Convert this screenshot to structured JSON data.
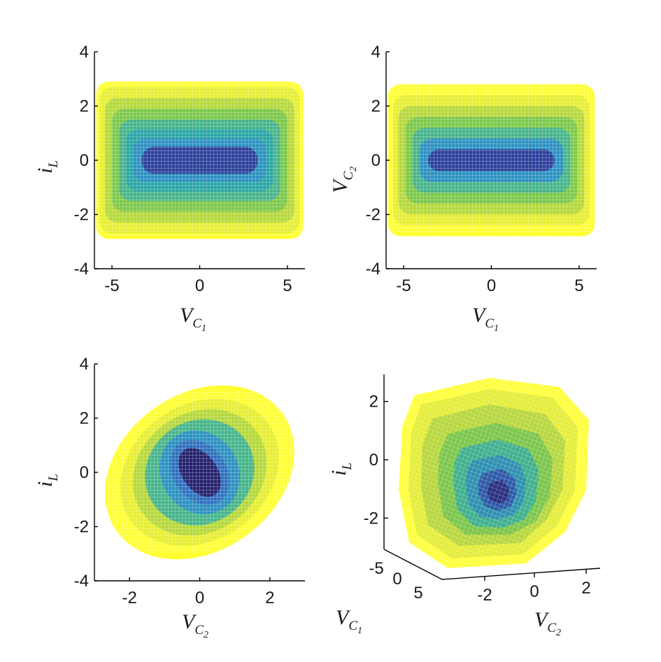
{
  "palette": {
    "levels": [
      "#ffff33",
      "#e6ee32",
      "#b5d83a",
      "#7cc84a",
      "#46b48a",
      "#2aa5a5",
      "#2b90c0",
      "#2f6fbe",
      "#2c3f9a",
      "#25216e"
    ],
    "mesh": "#ffffff"
  },
  "chart_data": [
    {
      "type": "contour",
      "panel": "top-left",
      "xlabel": {
        "base": "V",
        "sub": "C",
        "subsub": "1"
      },
      "ylabel": {
        "base": "i",
        "sub": "L"
      },
      "xlim": [
        -6,
        6
      ],
      "ylim": [
        -4,
        4
      ],
      "xticks": [
        -5,
        0,
        5
      ],
      "yticks": [
        4,
        2,
        0,
        -2,
        -4
      ],
      "region": {
        "x": [
          -6,
          6
        ],
        "y": [
          -3,
          3
        ]
      },
      "levels": [
        {
          "rx": 5.9,
          "ry": 2.9,
          "level": 0
        },
        {
          "rx": 5.7,
          "ry": 2.7,
          "level": 1
        },
        {
          "rx": 5.4,
          "ry": 2.3,
          "level": 2
        },
        {
          "rx": 5.0,
          "ry": 1.9,
          "level": 3
        },
        {
          "rx": 4.6,
          "ry": 1.5,
          "level": 4
        },
        {
          "rx": 4.2,
          "ry": 1.15,
          "level": 5
        },
        {
          "rx": 3.8,
          "ry": 0.8,
          "level": 6
        },
        {
          "rx": 3.3,
          "ry": 0.5,
          "level": 8
        }
      ]
    },
    {
      "type": "contour",
      "panel": "top-right",
      "xlabel": {
        "base": "V",
        "sub": "C",
        "subsub": "1"
      },
      "ylabel": {
        "base": "V",
        "sub": "C",
        "subsub": "2"
      },
      "xlim": [
        -6,
        6
      ],
      "ylim": [
        -4,
        4
      ],
      "xticks": [
        -5,
        0,
        5
      ],
      "yticks": [
        4,
        2,
        0,
        -2,
        -4
      ],
      "region": {
        "x": [
          -6,
          6
        ],
        "y": [
          -3,
          3
        ]
      },
      "levels": [
        {
          "rx": 5.9,
          "ry": 2.8,
          "level": 0
        },
        {
          "rx": 5.6,
          "ry": 2.4,
          "level": 1
        },
        {
          "rx": 5.3,
          "ry": 2.0,
          "level": 2
        },
        {
          "rx": 4.9,
          "ry": 1.6,
          "level": 3
        },
        {
          "rx": 4.5,
          "ry": 1.2,
          "level": 4
        },
        {
          "rx": 4.1,
          "ry": 0.8,
          "level": 6
        },
        {
          "rx": 3.6,
          "ry": 0.4,
          "level": 8
        }
      ]
    },
    {
      "type": "contour",
      "panel": "bottom-left",
      "xlabel": {
        "base": "V",
        "sub": "C",
        "subsub": "2"
      },
      "ylabel": {
        "base": "i",
        "sub": "L"
      },
      "xlim": [
        -3,
        3
      ],
      "ylim": [
        -4,
        4
      ],
      "xticks": [
        -2,
        0,
        2
      ],
      "yticks": [
        4,
        2,
        0,
        -2,
        -4
      ],
      "region": {
        "x": [
          -3,
          3
        ],
        "y": [
          -3,
          3
        ]
      },
      "levels": [
        {
          "rx": 2.9,
          "ry": 2.9,
          "level": 0
        },
        {
          "rx": 2.4,
          "ry": 2.5,
          "level": 1
        },
        {
          "rx": 2.0,
          "ry": 2.2,
          "level": 2
        },
        {
          "rx": 1.6,
          "ry": 1.9,
          "level": 4
        },
        {
          "rx": 1.1,
          "ry": 1.6,
          "level": 6
        },
        {
          "rx": 0.75,
          "ry": 1.3,
          "level": 7
        },
        {
          "rx": 0.5,
          "ry": 1.0,
          "level": 9
        }
      ]
    },
    {
      "type": "surface3d",
      "panel": "bottom-right",
      "xlabel": {
        "base": "V",
        "sub": "C",
        "subsub": "1"
      },
      "ylabel": {
        "base": "i",
        "sub": "L"
      },
      "zlabel": {
        "base": "V",
        "sub": "C",
        "subsub": "2"
      },
      "ylim": [
        -3,
        3
      ],
      "yticks": [
        2,
        0,
        -2
      ],
      "v1ticks": [
        -5,
        0,
        5
      ],
      "v2ticks": [
        -2,
        0,
        2
      ]
    }
  ]
}
